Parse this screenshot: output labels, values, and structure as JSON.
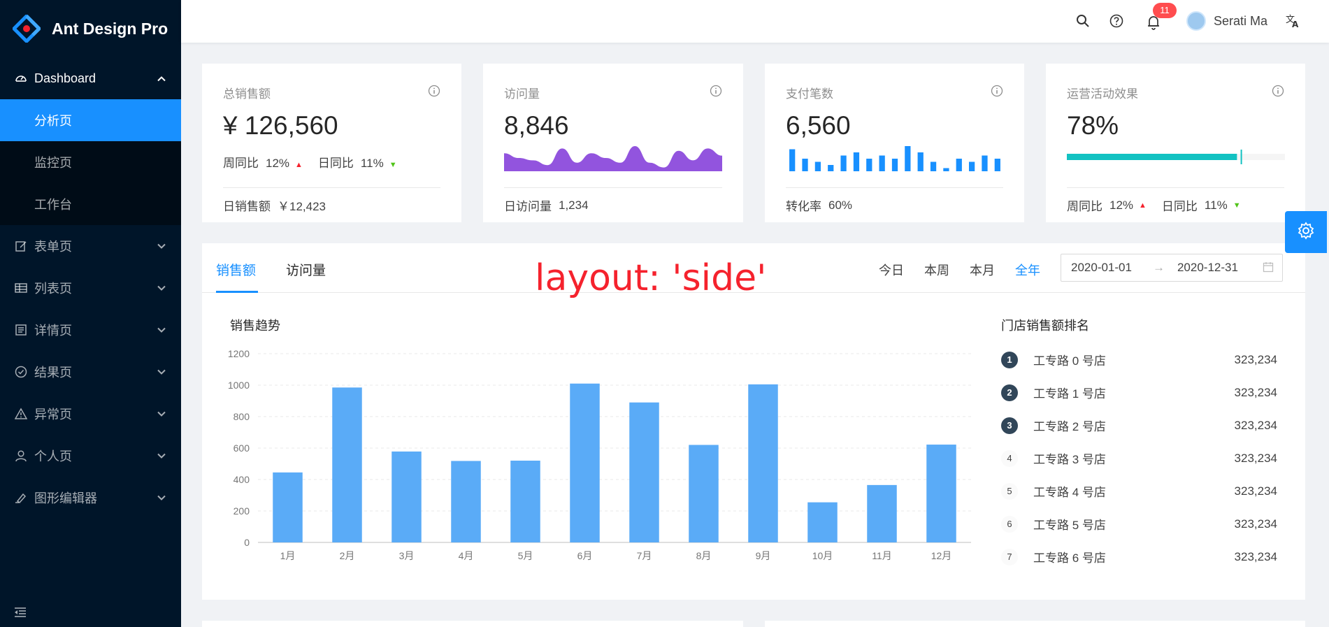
{
  "app": {
    "title": "Ant Design Pro"
  },
  "sidebar": {
    "items": [
      {
        "label": "Dashboard",
        "icon": "dashboard-icon",
        "open": true,
        "children": [
          {
            "label": "分析页",
            "active": true
          },
          {
            "label": "监控页"
          },
          {
            "label": "工作台"
          }
        ]
      },
      {
        "label": "表单页",
        "icon": "form-icon"
      },
      {
        "label": "列表页",
        "icon": "table-icon"
      },
      {
        "label": "详情页",
        "icon": "profile-icon"
      },
      {
        "label": "结果页",
        "icon": "check-circle-icon"
      },
      {
        "label": "异常页",
        "icon": "warning-icon"
      },
      {
        "label": "个人页",
        "icon": "user-icon"
      },
      {
        "label": "图形编辑器",
        "icon": "highlight-icon"
      }
    ]
  },
  "header": {
    "notification_count": "11",
    "username": "Serati Ma"
  },
  "stats": [
    {
      "title": "总销售额",
      "value": "¥ 126,560",
      "wow_label": "周同比",
      "wow_value": "12%",
      "dod_label": "日同比",
      "dod_value": "11%",
      "footer_label": "日销售额",
      "footer_value": "￥12,423"
    },
    {
      "title": "访问量",
      "value": "8,846",
      "footer_label": "日访问量",
      "footer_value": "1,234",
      "area": [
        7,
        5,
        4,
        2,
        9,
        3,
        7,
        5,
        3,
        10,
        3,
        1,
        8,
        4,
        9,
        6
      ]
    },
    {
      "title": "支付笔数",
      "value": "6,560",
      "footer_label": "转化率",
      "footer_value": "60%",
      "bars": [
        7,
        4,
        3,
        2,
        5,
        6,
        4,
        5,
        4,
        8,
        6,
        3,
        1,
        4,
        3,
        5,
        4
      ]
    },
    {
      "title": "运营活动效果",
      "value": "78%",
      "progress": 0.78,
      "target": 0.8,
      "wow_label": "周同比",
      "wow_value": "12%",
      "dod_label": "日同比",
      "dod_value": "11%"
    }
  ],
  "sales": {
    "tabs": [
      "销售额",
      "访问量"
    ],
    "ranges": [
      "今日",
      "本周",
      "本月",
      "全年"
    ],
    "active_range": "全年",
    "date_start": "2020-01-01",
    "date_end": "2020-12-31",
    "chart_title": "销售趋势",
    "rank_title": "门店销售额排名",
    "rank": [
      {
        "n": "1",
        "name": "工专路 0 号店",
        "value": "323,234"
      },
      {
        "n": "2",
        "name": "工专路 1 号店",
        "value": "323,234"
      },
      {
        "n": "3",
        "name": "工专路 2 号店",
        "value": "323,234"
      },
      {
        "n": "4",
        "name": "工专路 3 号店",
        "value": "323,234"
      },
      {
        "n": "5",
        "name": "工专路 4 号店",
        "value": "323,234"
      },
      {
        "n": "6",
        "name": "工专路 5 号店",
        "value": "323,234"
      },
      {
        "n": "7",
        "name": "工专路 6 号店",
        "value": "323,234"
      }
    ]
  },
  "overlay_text": "layout: 'side'",
  "colors": {
    "primary": "#1890ff",
    "bar": "#5aabf7",
    "area": "#9254de",
    "progress": "#13c2c2",
    "sider": "#001529"
  },
  "chart_data": {
    "type": "bar",
    "categories": [
      "1月",
      "2月",
      "3月",
      "4月",
      "5月",
      "6月",
      "7月",
      "8月",
      "9月",
      "10月",
      "11月",
      "12月"
    ],
    "values": [
      445,
      985,
      578,
      518,
      520,
      1010,
      890,
      620,
      1005,
      255,
      365,
      622
    ],
    "yticks": [
      0,
      200,
      400,
      600,
      800,
      1000,
      1200
    ],
    "ylim": [
      0,
      1200
    ],
    "grid": true
  }
}
